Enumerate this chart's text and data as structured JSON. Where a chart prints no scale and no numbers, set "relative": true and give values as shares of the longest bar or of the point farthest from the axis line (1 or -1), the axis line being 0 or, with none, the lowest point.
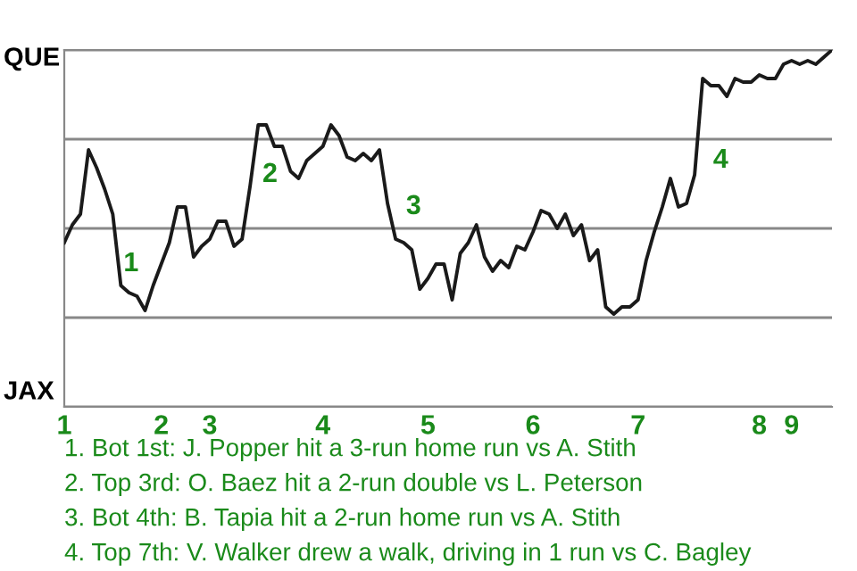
{
  "chart_data": {
    "type": "line",
    "relative": true,
    "categories": [
      "1",
      null,
      null,
      null,
      null,
      null,
      null,
      null,
      null,
      null,
      null,
      null,
      "2",
      null,
      null,
      null,
      null,
      null,
      "3",
      null,
      null,
      null,
      null,
      null,
      null,
      null,
      null,
      null,
      null,
      null,
      null,
      null,
      "4",
      null,
      null,
      null,
      null,
      null,
      null,
      null,
      null,
      null,
      null,
      null,
      null,
      "5",
      null,
      null,
      null,
      null,
      null,
      null,
      null,
      null,
      null,
      null,
      null,
      null,
      "6",
      null,
      null,
      null,
      null,
      null,
      null,
      null,
      null,
      null,
      null,
      null,
      null,
      "7",
      null,
      null,
      null,
      null,
      null,
      null,
      null,
      null,
      null,
      null,
      null,
      null,
      null,
      null,
      "8",
      null,
      null,
      null,
      "9",
      null,
      null,
      null,
      null,
      null
    ],
    "series": [
      {
        "color": "#1a1a1a",
        "values": [
          0.46,
          0.51,
          0.54,
          0.72,
          0.67,
          0.61,
          0.54,
          0.34,
          0.32,
          0.31,
          0.27,
          0.34,
          0.4,
          0.46,
          0.56,
          0.56,
          0.42,
          0.45,
          0.47,
          0.52,
          0.52,
          0.45,
          0.47,
          0.62,
          0.79,
          0.79,
          0.73,
          0.73,
          0.66,
          0.64,
          0.69,
          0.71,
          0.73,
          0.79,
          0.76,
          0.7,
          0.69,
          0.71,
          0.69,
          0.72,
          0.57,
          0.47,
          0.46,
          0.44,
          0.33,
          0.36,
          0.4,
          0.4,
          0.3,
          0.43,
          0.46,
          0.51,
          0.42,
          0.38,
          0.41,
          0.39,
          0.45,
          0.44,
          0.49,
          0.55,
          0.54,
          0.5,
          0.54,
          0.48,
          0.51,
          0.41,
          0.44,
          0.28,
          0.26,
          0.28,
          0.28,
          0.3,
          0.41,
          0.49,
          0.56,
          0.64,
          0.56,
          0.57,
          0.65,
          0.92,
          0.9,
          0.9,
          0.87,
          0.92,
          0.91,
          0.91,
          0.93,
          0.92,
          0.92,
          0.96,
          0.97,
          0.96,
          0.97,
          0.96,
          0.98,
          1.0
        ]
      }
    ],
    "grid": "y",
    "annotations": [
      "QUE",
      "JAX",
      "1",
      "2",
      "3",
      "4",
      "1. Bot 1st: J. Popper hit a 3-run home run vs A. Stith",
      "2. Top 3rd: O. Baez hit a 2-run double vs L. Peterson",
      "3. Bot 4th: B. Tapia hit a 2-run home run vs A. Stith",
      "4. Top 7th: V. Walker drew a walk, driving in 1 run vs C. Bagley"
    ]
  }
}
